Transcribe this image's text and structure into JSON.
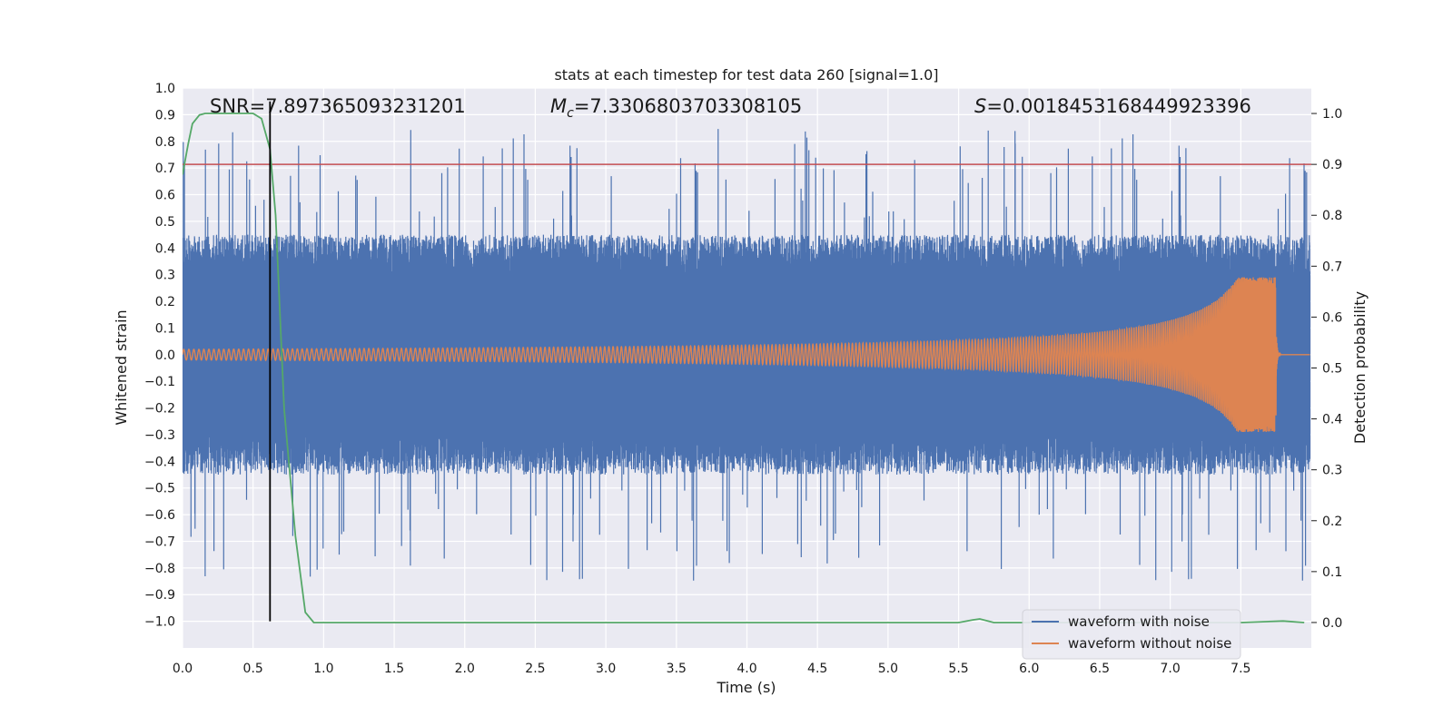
{
  "chart_data": {
    "type": "line",
    "title": "stats at each timestep for test data 260 [signal=1.0]",
    "xlabel": "Time (s)",
    "ylabel": "Whitened strain",
    "y2label": "Detection probability",
    "xlim": [
      0.0,
      8.0
    ],
    "ylim": [
      -1.1,
      1.0
    ],
    "y2lim": [
      -0.05,
      1.05
    ],
    "x_ticks": [
      0.0,
      0.5,
      1.0,
      1.5,
      2.0,
      2.5,
      3.0,
      3.5,
      4.0,
      4.5,
      5.0,
      5.5,
      6.0,
      6.5,
      7.0,
      7.5
    ],
    "x_tick_labels": [
      "0.0",
      "0.5",
      "1.0",
      "1.5",
      "2.0",
      "2.5",
      "3.0",
      "3.5",
      "4.0",
      "4.5",
      "5.0",
      "5.5",
      "6.0",
      "6.5",
      "7.0",
      "7.5"
    ],
    "y_ticks": [
      1.0,
      0.9,
      0.8,
      0.7,
      0.6,
      0.5,
      0.4,
      0.3,
      0.2,
      0.1,
      0.0,
      -0.1,
      -0.2,
      -0.3,
      -0.4,
      -0.5,
      -0.6,
      -0.7,
      -0.8,
      -0.9,
      -1.0
    ],
    "y_tick_labels": [
      "1.0",
      "0.9",
      "0.8",
      "0.7",
      "0.6",
      "0.5",
      "0.4",
      "0.3",
      "0.2",
      "0.1",
      "0.0",
      "−0.1",
      "−0.2",
      "−0.3",
      "−0.4",
      "−0.5",
      "−0.6",
      "−0.7",
      "−0.8",
      "−0.9",
      "−1.0"
    ],
    "y2_ticks": [
      1.0,
      0.9,
      0.8,
      0.7,
      0.6,
      0.5,
      0.4,
      0.3,
      0.2,
      0.1,
      0.0
    ],
    "y2_tick_labels": [
      "1.0",
      "0.9",
      "0.8",
      "0.7",
      "0.6",
      "0.5",
      "0.4",
      "0.3",
      "0.2",
      "0.1",
      "0.0"
    ],
    "grid": true,
    "legend_position": "lower-right",
    "annotations": {
      "snr": "SNR=7.897365093231201",
      "mc": "=7.3306803703308105",
      "s": "=0.0018453168449923396"
    },
    "series": [
      {
        "name": "waveform with noise",
        "color": "#4c72b0",
        "axis": "left",
        "kind": "noise",
        "band_abs_typical": 0.3,
        "peak_abs_max": 0.9
      },
      {
        "name": "waveform without noise",
        "color": "#dd8452",
        "axis": "left",
        "kind": "chirp",
        "x_start": 0.0,
        "x_merger": 7.75,
        "amp_start": 0.02,
        "amp_peak_pos": 0.29,
        "amp_peak_neg": -0.25
      },
      {
        "name": "detection probability",
        "color": "#55a868",
        "axis": "right",
        "x": [
          0.0,
          0.04,
          0.07,
          0.12,
          0.16,
          0.25,
          0.4,
          0.5,
          0.56,
          0.62,
          0.66,
          0.72,
          0.8,
          0.87,
          0.93,
          1.0,
          2.0,
          4.0,
          5.0,
          5.5,
          5.6,
          5.65,
          5.75,
          6.0,
          7.0,
          7.5,
          7.8,
          7.95
        ],
        "y": [
          0.88,
          0.94,
          0.98,
          0.997,
          1.0,
          1.0,
          1.0,
          1.0,
          0.99,
          0.93,
          0.8,
          0.42,
          0.17,
          0.02,
          0.0,
          0.0,
          0.0,
          0.0,
          0.0,
          0.0,
          0.005,
          0.007,
          0.0,
          0.0,
          0.0,
          0.0,
          0.003,
          0.0
        ]
      },
      {
        "name": "threshold",
        "color": "#c44e52",
        "axis": "right",
        "y_value": 0.9
      },
      {
        "name": "detection time",
        "color": "#000000",
        "axis": "left",
        "x_value": 0.62
      }
    ],
    "legend": [
      "waveform with noise",
      "waveform without noise"
    ]
  }
}
